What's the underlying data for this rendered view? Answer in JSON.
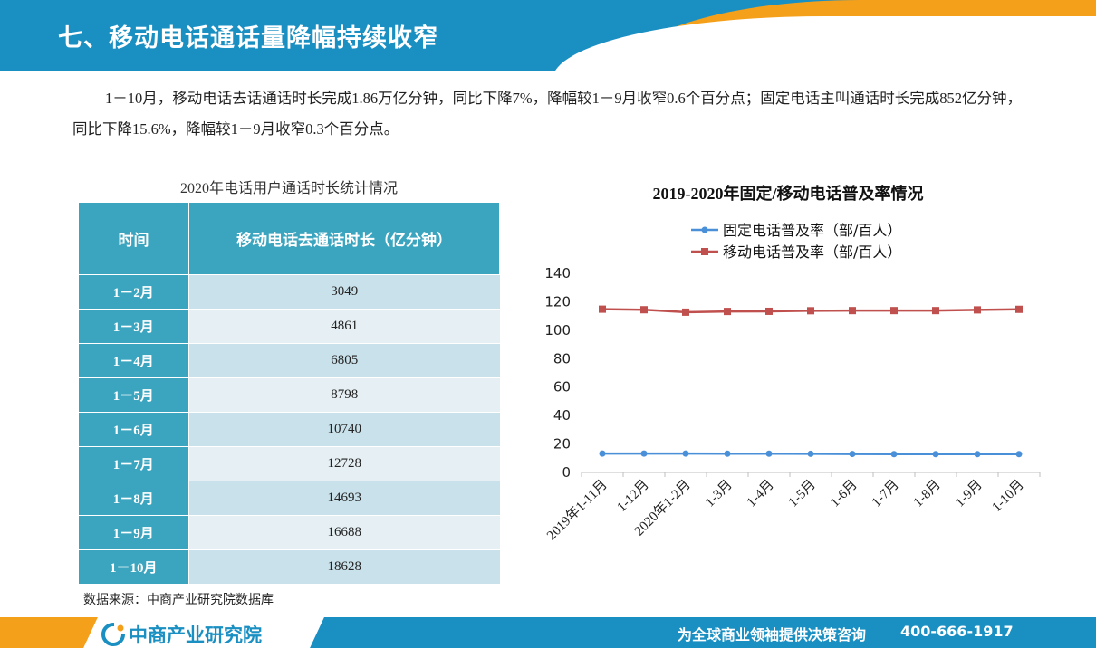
{
  "header": {
    "title": "七、移动电话通话量降幅持续收窄"
  },
  "paragraph": "1－10月，移动电话去话通话时长完成1.86万亿分钟，同比下降7%，降幅较1－9月收窄0.6个百分点；固定电话主叫通话时长完成852亿分钟，同比下降15.6%，降幅较1－9月收窄0.3个百分点。",
  "table": {
    "title": "2020年电话用户通话时长统计情况",
    "headers": [
      "时间",
      "移动电话去通话时长（亿分钟）"
    ],
    "rows": [
      [
        "1－2月",
        "3049"
      ],
      [
        "1－3月",
        "4861"
      ],
      [
        "1－4月",
        "6805"
      ],
      [
        "1－5月",
        "8798"
      ],
      [
        "1－6月",
        "10740"
      ],
      [
        "1－7月",
        "12728"
      ],
      [
        "1－8月",
        "14693"
      ],
      [
        "1－9月",
        "16688"
      ],
      [
        "1－10月",
        "18628"
      ]
    ]
  },
  "source": "数据来源：中商产业研究院数据库",
  "chart_data": {
    "type": "line",
    "title": "2019-2020年固定/移动电话普及率情况",
    "categories": [
      "2019年1-11月",
      "1-12月",
      "2020年1-2月",
      "1-3月",
      "1-4月",
      "1-5月",
      "1-6月",
      "1-7月",
      "1-8月",
      "1-9月",
      "1-10月"
    ],
    "series": [
      {
        "name": "固定电话普及率（部/百人）",
        "color": "#4a90d9",
        "marker": "circle",
        "values": [
          13.3,
          13.3,
          13.3,
          13.2,
          13.2,
          13.1,
          13.0,
          12.9,
          12.9,
          12.9,
          12.9
        ]
      },
      {
        "name": "移动电话普及率（部/百人）",
        "color": "#c0504d",
        "marker": "square",
        "values": [
          114.8,
          114.4,
          112.7,
          113.2,
          113.3,
          113.7,
          113.8,
          113.8,
          113.8,
          114.3,
          114.7
        ]
      }
    ],
    "ylim": [
      0,
      140
    ],
    "yticks": [
      0,
      20,
      40,
      60,
      80,
      100,
      120,
      140
    ],
    "legend": "top"
  },
  "footer": {
    "logo": "中商产业研究院",
    "slogan": "为全球商业领袖提供决策咨询",
    "phone": "400-666-1917"
  },
  "colors": {
    "blue": "#1a8fc2",
    "orange": "#f5a01a",
    "table_header": "#3ba5bf"
  }
}
